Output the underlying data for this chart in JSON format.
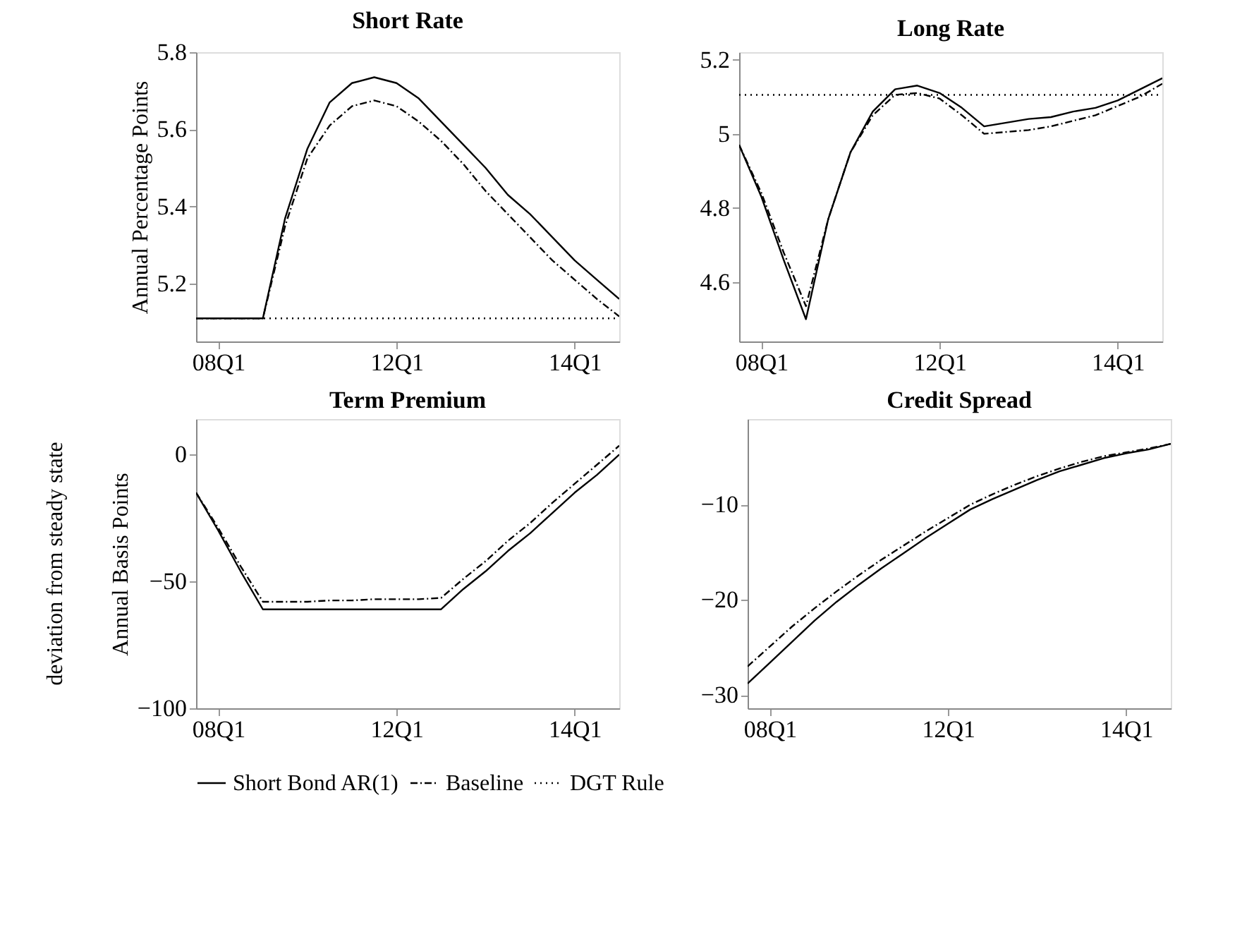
{
  "chart_data": [
    {
      "type": "line",
      "title": "Short Rate",
      "ylabel": "Annual Percentage Points",
      "legend": "bottom",
      "grid": false,
      "categories": [
        null,
        "08Q1",
        null,
        null,
        null,
        null,
        null,
        null,
        null,
        "12Q1",
        null,
        null,
        null,
        null,
        null,
        null,
        null,
        "14Q1",
        null,
        null
      ],
      "ylim": [
        5.05,
        5.8
      ],
      "yticks": [
        5.2,
        5.4,
        5.6,
        5.8
      ],
      "series": [
        {
          "name": "Short Bond AR(1)",
          "color": "#000000",
          "line_style": "solid",
          "values": [
            5.11,
            5.11,
            5.11,
            5.11,
            5.37,
            5.55,
            5.67,
            5.72,
            5.735,
            5.72,
            5.68,
            5.62,
            5.56,
            5.5,
            5.43,
            5.38,
            5.32,
            5.26,
            5.21,
            5.16
          ]
        },
        {
          "name": "Baseline",
          "color": "#000000",
          "line_style": "dashed",
          "values": [
            5.11,
            5.11,
            5.11,
            5.11,
            5.35,
            5.525,
            5.61,
            5.66,
            5.675,
            5.66,
            5.62,
            5.57,
            5.51,
            5.44,
            5.38,
            5.32,
            5.26,
            5.21,
            5.16,
            5.115
          ]
        },
        {
          "name": "DGT Rule",
          "color": "#000000",
          "line_style": "dotted",
          "values": [
            5.11,
            5.11,
            5.11,
            5.11,
            5.11,
            5.11,
            5.11,
            5.11,
            5.11,
            5.11,
            5.11,
            5.11,
            5.11,
            5.11,
            5.11,
            5.11,
            5.11,
            5.11,
            5.11,
            5.11
          ]
        }
      ]
    },
    {
      "type": "line",
      "title": "Long Rate",
      "grid": false,
      "categories": [
        null,
        "08Q1",
        null,
        null,
        null,
        null,
        null,
        null,
        null,
        "12Q1",
        null,
        null,
        null,
        null,
        null,
        null,
        null,
        "14Q1",
        null,
        null
      ],
      "ylim": [
        4.44,
        5.22
      ],
      "yticks": [
        4.6,
        4.8,
        {
          "value": 5,
          "label": "5"
        },
        5.2
      ],
      "series": [
        {
          "name": "Short Bond AR(1)",
          "color": "#000000",
          "line_style": "solid",
          "values": [
            4.97,
            4.83,
            4.66,
            4.5,
            4.77,
            4.95,
            5.06,
            5.12,
            5.13,
            5.11,
            5.07,
            5.02,
            5.03,
            5.04,
            5.045,
            5.06,
            5.07,
            5.09,
            5.12,
            5.15
          ]
        },
        {
          "name": "Baseline",
          "color": "#000000",
          "line_style": "dashed",
          "values": [
            4.97,
            4.84,
            4.68,
            4.535,
            4.77,
            4.95,
            5.05,
            5.105,
            5.11,
            5.095,
            5.05,
            5.0,
            5.005,
            5.01,
            5.02,
            5.035,
            5.05,
            5.075,
            5.1,
            5.135
          ]
        },
        {
          "name": "DGT Rule",
          "color": "#000000",
          "line_style": "dotted",
          "values": [
            5.105,
            5.105,
            5.105,
            5.105,
            5.105,
            5.105,
            5.105,
            5.105,
            5.105,
            5.105,
            5.105,
            5.105,
            5.105,
            5.105,
            5.105,
            5.105,
            5.105,
            5.105,
            5.105,
            5.105
          ]
        }
      ]
    },
    {
      "type": "line",
      "title": "Term Premium",
      "ylabel": "Annual Basis Points",
      "annotations": [
        "deviation from steady state"
      ],
      "grid": false,
      "categories": [
        null,
        "08Q1",
        null,
        null,
        null,
        null,
        null,
        null,
        null,
        "12Q1",
        null,
        null,
        null,
        null,
        null,
        null,
        null,
        "14Q1",
        null,
        null
      ],
      "ylim": [
        -100,
        14
      ],
      "yticks": [
        -100,
        -50,
        0
      ],
      "series": [
        {
          "name": "Short Bond AR(1)",
          "color": "#000000",
          "line_style": "solid",
          "values": [
            -15,
            -30,
            -46,
            -61,
            -61,
            -61,
            -61,
            -61,
            -61,
            -61,
            -61,
            -61,
            -53,
            -46,
            -38,
            -31,
            -23,
            -15,
            -8,
            0
          ]
        },
        {
          "name": "Baseline",
          "color": "#000000",
          "line_style": "dashed",
          "values": [
            -15,
            -29,
            -44,
            -58,
            -58,
            -58,
            -57.5,
            -57.5,
            -57,
            -57,
            -57,
            -56.5,
            -49,
            -42,
            -34,
            -27,
            -19,
            -11.5,
            -4,
            3.5
          ]
        }
      ]
    },
    {
      "type": "line",
      "title": "Credit Spread",
      "grid": false,
      "categories": [
        null,
        "08Q1",
        null,
        null,
        null,
        null,
        null,
        null,
        null,
        "12Q1",
        null,
        null,
        null,
        null,
        null,
        null,
        null,
        "14Q1",
        null,
        null
      ],
      "ylim": [
        -31.4,
        -1
      ],
      "yticks": [
        -30,
        -20,
        -10
      ],
      "series": [
        {
          "name": "Short Bond AR(1)",
          "color": "#000000",
          "line_style": "solid",
          "values": [
            -28.8,
            -26.6,
            -24.4,
            -22.2,
            -20.2,
            -18.4,
            -16.7,
            -15.1,
            -13.5,
            -12,
            -10.5,
            -9.4,
            -8.4,
            -7.4,
            -6.5,
            -5.8,
            -5.1,
            -4.6,
            -4.2,
            -3.6
          ]
        },
        {
          "name": "Baseline",
          "color": "#000000",
          "line_style": "dashed",
          "values": [
            -27,
            -24.9,
            -22.8,
            -20.9,
            -19.1,
            -17.4,
            -15.8,
            -14.3,
            -12.8,
            -11.4,
            -10,
            -8.9,
            -7.9,
            -7,
            -6.2,
            -5.5,
            -4.9,
            -4.5,
            -4.1,
            -3.6
          ]
        }
      ]
    }
  ]
}
